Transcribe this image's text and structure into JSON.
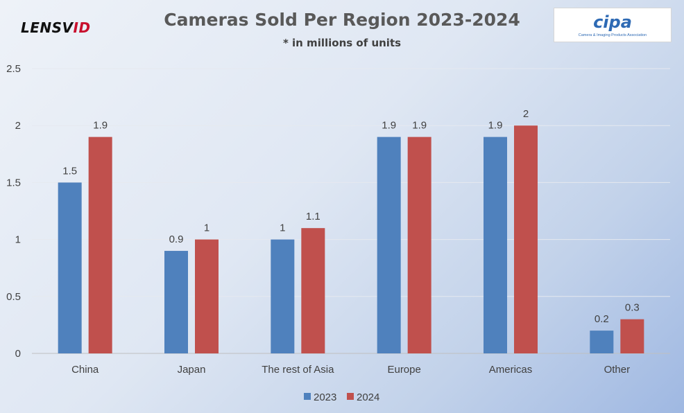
{
  "branding": {
    "left_logo": "LENSVID",
    "right_logo_mark": "cipa",
    "right_logo_tagline": "Camera & Imaging Products Association"
  },
  "chart_data": {
    "type": "bar",
    "title": "Cameras Sold Per Region 2023-2024",
    "subtitle": "* in millions of units",
    "categories": [
      "China",
      "Japan",
      "The rest of Asia",
      "Europe",
      "Americas",
      "Other"
    ],
    "series": [
      {
        "name": "2023",
        "values": [
          1.5,
          0.9,
          1,
          1.9,
          1.9,
          0.2
        ],
        "labels": [
          "1.5",
          "0.9",
          "1",
          "1.9",
          "1.9",
          "0.2"
        ],
        "color": "#4f81bd"
      },
      {
        "name": "2024",
        "values": [
          1.9,
          1,
          1.1,
          1.9,
          2,
          0.3
        ],
        "labels": [
          "1.9",
          "1",
          "1.1",
          "1.9",
          "2",
          "0.3"
        ],
        "color": "#c0504d"
      }
    ],
    "ylim": [
      0,
      2.5
    ],
    "yticks": [
      "0",
      "0.5",
      "1",
      "1.5",
      "2",
      "2.5"
    ],
    "grid": true,
    "legend": "bottom-center",
    "xlabel": "",
    "ylabel": ""
  }
}
